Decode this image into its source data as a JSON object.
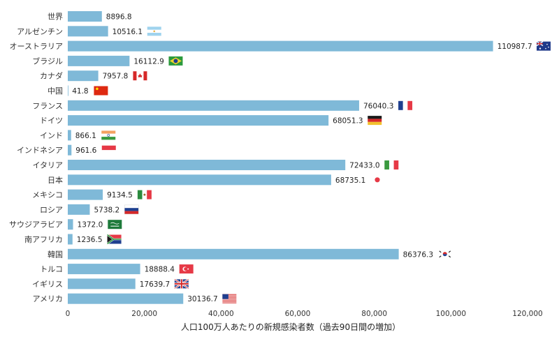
{
  "chart_data": {
    "type": "bar",
    "orientation": "horizontal",
    "title": "",
    "xlabel": "人口100万人あたりの新規感染者数（過去90日間の増加）",
    "ylabel": "",
    "xlim": [
      0,
      120000
    ],
    "xticks": [
      0,
      20000,
      40000,
      60000,
      80000,
      100000,
      120000
    ],
    "xtick_labels": [
      "0",
      "20,000",
      "40,000",
      "60,000",
      "80,000",
      "100,000",
      "120,000"
    ],
    "grid": false,
    "legend": "none",
    "bar_color": "#7fb9d8",
    "categories": [
      "世界",
      "アルゼンチン",
      "オーストラリア",
      "ブラジル",
      "カナダ",
      "中国",
      "フランス",
      "ドイツ",
      "インド",
      "インドネシア",
      "イタリア",
      "日本",
      "メキシコ",
      "ロシア",
      "サウジアラビア",
      "南アフリカ",
      "韓国",
      "トルコ",
      "イギリス",
      "アメリカ"
    ],
    "value_labels": [
      "8896.8",
      "10516.1",
      "110987.7",
      "16112.9",
      "7957.8",
      "41.8",
      "76040.3",
      "68051.3",
      "866.1",
      "961.6",
      "72433.0",
      "68735.1",
      "9134.5",
      "5738.2",
      "1372.0",
      "1236.5",
      "86376.3",
      "18888.4",
      "17639.7",
      "30136.7"
    ],
    "values": [
      8896.8,
      10516.1,
      110987.7,
      16112.9,
      7957.8,
      41.8,
      76040.3,
      68051.3,
      866.1,
      961.6,
      72433.0,
      68735.1,
      9134.5,
      5738.2,
      1372.0,
      1236.5,
      86376.3,
      18888.4,
      17639.7,
      30136.7
    ],
    "flags": [
      null,
      "argentina-flag",
      "australia-flag",
      "brazil-flag",
      "canada-flag",
      "china-flag",
      "france-flag",
      "germany-flag",
      "india-flag",
      "indonesia-flag",
      "italy-flag",
      "japan-flag",
      "mexico-flag",
      "russia-flag",
      "saudi-arabia-flag",
      "south-africa-flag",
      "south-korea-flag",
      "turkey-flag",
      "uk-flag",
      "usa-flag"
    ]
  }
}
